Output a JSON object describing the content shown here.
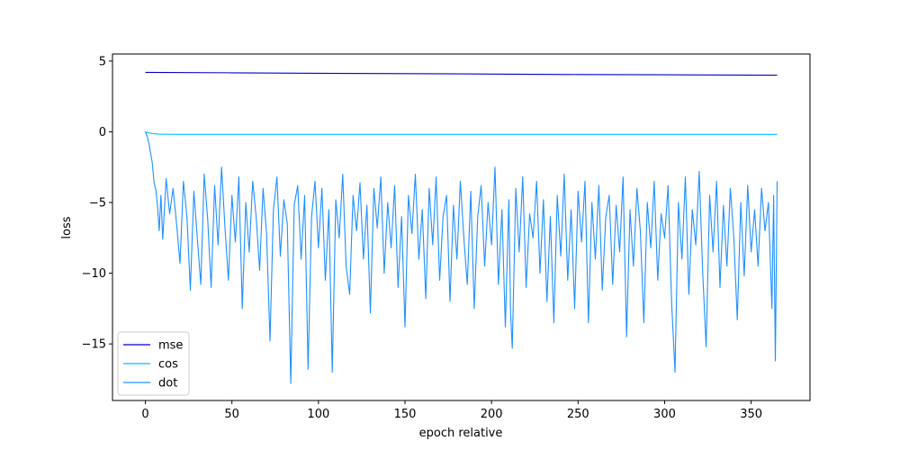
{
  "chart_data": {
    "type": "line",
    "title": "",
    "xlabel": "epoch relative",
    "ylabel": "loss",
    "xlim": [
      -19,
      384
    ],
    "ylim": [
      -19,
      5.5
    ],
    "xticks": [
      0,
      50,
      100,
      150,
      200,
      250,
      300,
      350
    ],
    "yticks": [
      5,
      0,
      -5,
      -10,
      -15
    ],
    "ytick_labels": [
      "5",
      "0",
      "−5",
      "−10",
      "−15"
    ],
    "grid": false,
    "legend_position": "lower-left",
    "series": [
      {
        "name": "mse",
        "color": "#0000cd",
        "points": [
          [
            0,
            4.2
          ],
          [
            50,
            4.17
          ],
          [
            100,
            4.14
          ],
          [
            150,
            4.11
          ],
          [
            200,
            4.08
          ],
          [
            250,
            4.05
          ],
          [
            300,
            4.03
          ],
          [
            365,
            4.0
          ]
        ]
      },
      {
        "name": "cos",
        "color": "#00bfff",
        "points": [
          [
            0,
            0.0
          ],
          [
            2,
            -0.08
          ],
          [
            4,
            -0.12
          ],
          [
            8,
            -0.17
          ],
          [
            20,
            -0.18
          ],
          [
            100,
            -0.18
          ],
          [
            200,
            -0.18
          ],
          [
            300,
            -0.18
          ],
          [
            365,
            -0.18
          ]
        ]
      },
      {
        "name": "dot",
        "color": "#1e90ff",
        "points": [
          [
            0,
            0.0
          ],
          [
            1,
            -0.3
          ],
          [
            2,
            -0.8
          ],
          [
            3,
            -1.5
          ],
          [
            4,
            -2.2
          ],
          [
            5,
            -3.6
          ],
          [
            6,
            -4.1
          ],
          [
            7,
            -5.2
          ],
          [
            8,
            -7.0
          ],
          [
            9,
            -4.5
          ],
          [
            10,
            -7.6
          ],
          [
            12,
            -3.3
          ],
          [
            14,
            -5.8
          ],
          [
            16,
            -4.0
          ],
          [
            18,
            -6.5
          ],
          [
            20,
            -9.3
          ],
          [
            22,
            -3.5
          ],
          [
            24,
            -6.0
          ],
          [
            26,
            -11.2
          ],
          [
            28,
            -4.2
          ],
          [
            30,
            -7.5
          ],
          [
            32,
            -10.8
          ],
          [
            34,
            -3.0
          ],
          [
            36,
            -6.2
          ],
          [
            38,
            -11.0
          ],
          [
            40,
            -3.8
          ],
          [
            42,
            -8.0
          ],
          [
            44,
            -2.5
          ],
          [
            46,
            -6.8
          ],
          [
            48,
            -10.5
          ],
          [
            50,
            -4.5
          ],
          [
            52,
            -7.8
          ],
          [
            54,
            -3.2
          ],
          [
            56,
            -12.5
          ],
          [
            58,
            -5.0
          ],
          [
            60,
            -8.5
          ],
          [
            62,
            -3.5
          ],
          [
            64,
            -6.0
          ],
          [
            66,
            -9.8
          ],
          [
            68,
            -4.0
          ],
          [
            70,
            -7.2
          ],
          [
            72,
            -14.8
          ],
          [
            74,
            -5.5
          ],
          [
            76,
            -3.2
          ],
          [
            78,
            -8.8
          ],
          [
            80,
            -4.8
          ],
          [
            82,
            -6.5
          ],
          [
            84,
            -17.8
          ],
          [
            86,
            -5.2
          ],
          [
            88,
            -3.8
          ],
          [
            90,
            -9.0
          ],
          [
            92,
            -4.5
          ],
          [
            94,
            -16.8
          ],
          [
            96,
            -6.0
          ],
          [
            98,
            -3.5
          ],
          [
            100,
            -8.2
          ],
          [
            102,
            -4.0
          ],
          [
            104,
            -10.5
          ],
          [
            106,
            -5.5
          ],
          [
            108,
            -17.0
          ],
          [
            110,
            -4.8
          ],
          [
            112,
            -7.5
          ],
          [
            114,
            -3.0
          ],
          [
            116,
            -9.5
          ],
          [
            118,
            -11.5
          ],
          [
            120,
            -4.5
          ],
          [
            122,
            -7.0
          ],
          [
            124,
            -3.6
          ],
          [
            126,
            -9.0
          ],
          [
            128,
            -5.2
          ],
          [
            130,
            -12.8
          ],
          [
            132,
            -4.0
          ],
          [
            134,
            -6.8
          ],
          [
            136,
            -3.2
          ],
          [
            138,
            -10.0
          ],
          [
            140,
            -5.0
          ],
          [
            142,
            -8.2
          ],
          [
            144,
            -3.8
          ],
          [
            146,
            -11.0
          ],
          [
            148,
            -6.0
          ],
          [
            150,
            -13.8
          ],
          [
            152,
            -4.5
          ],
          [
            154,
            -7.2
          ],
          [
            156,
            -3.0
          ],
          [
            158,
            -9.0
          ],
          [
            160,
            -5.5
          ],
          [
            162,
            -11.8
          ],
          [
            164,
            -4.0
          ],
          [
            166,
            -8.0
          ],
          [
            168,
            -3.2
          ],
          [
            170,
            -10.5
          ],
          [
            172,
            -6.0
          ],
          [
            174,
            -4.5
          ],
          [
            176,
            -12.0
          ],
          [
            178,
            -5.2
          ],
          [
            180,
            -9.0
          ],
          [
            182,
            -3.5
          ],
          [
            184,
            -7.5
          ],
          [
            186,
            -10.8
          ],
          [
            188,
            -4.2
          ],
          [
            190,
            -12.5
          ],
          [
            192,
            -6.0
          ],
          [
            194,
            -3.8
          ],
          [
            196,
            -9.5
          ],
          [
            198,
            -5.0
          ],
          [
            200,
            -8.0
          ],
          [
            202,
            -2.5
          ],
          [
            204,
            -10.8
          ],
          [
            206,
            -5.5
          ],
          [
            208,
            -13.8
          ],
          [
            210,
            -4.8
          ],
          [
            211,
            -12.8
          ],
          [
            212,
            -15.3
          ],
          [
            214,
            -4.0
          ],
          [
            216,
            -8.5
          ],
          [
            218,
            -3.2
          ],
          [
            220,
            -11.0
          ],
          [
            222,
            -5.8
          ],
          [
            224,
            -7.5
          ],
          [
            226,
            -3.5
          ],
          [
            228,
            -10.0
          ],
          [
            230,
            -4.8
          ],
          [
            232,
            -12.0
          ],
          [
            234,
            -6.0
          ],
          [
            236,
            -13.5
          ],
          [
            238,
            -4.5
          ],
          [
            240,
            -8.8
          ],
          [
            242,
            -3.0
          ],
          [
            244,
            -10.5
          ],
          [
            246,
            -5.5
          ],
          [
            248,
            -12.5
          ],
          [
            250,
            -4.2
          ],
          [
            252,
            -7.8
          ],
          [
            254,
            -3.5
          ],
          [
            256,
            -13.5
          ],
          [
            258,
            -5.0
          ],
          [
            260,
            -9.0
          ],
          [
            262,
            -3.8
          ],
          [
            264,
            -11.2
          ],
          [
            266,
            -6.0
          ],
          [
            268,
            -4.5
          ],
          [
            270,
            -10.8
          ],
          [
            272,
            -5.2
          ],
          [
            274,
            -8.5
          ],
          [
            276,
            -3.2
          ],
          [
            278,
            -14.5
          ],
          [
            280,
            -5.5
          ],
          [
            282,
            -9.5
          ],
          [
            284,
            -4.0
          ],
          [
            286,
            -7.0
          ],
          [
            288,
            -13.5
          ],
          [
            290,
            -5.0
          ],
          [
            292,
            -8.2
          ],
          [
            294,
            -3.5
          ],
          [
            296,
            -10.5
          ],
          [
            298,
            -5.8
          ],
          [
            300,
            -7.5
          ],
          [
            302,
            -3.8
          ],
          [
            304,
            -12.0
          ],
          [
            306,
            -17.0
          ],
          [
            308,
            -5.0
          ],
          [
            310,
            -9.0
          ],
          [
            312,
            -3.2
          ],
          [
            314,
            -11.5
          ],
          [
            316,
            -5.5
          ],
          [
            318,
            -8.0
          ],
          [
            320,
            -2.8
          ],
          [
            322,
            -10.0
          ],
          [
            324,
            -15.2
          ],
          [
            326,
            -4.5
          ],
          [
            328,
            -8.5
          ],
          [
            330,
            -3.5
          ],
          [
            332,
            -11.0
          ],
          [
            334,
            -5.2
          ],
          [
            336,
            -9.5
          ],
          [
            338,
            -4.0
          ],
          [
            340,
            -7.5
          ],
          [
            342,
            -13.3
          ],
          [
            344,
            -5.0
          ],
          [
            346,
            -10.2
          ],
          [
            348,
            -3.8
          ],
          [
            350,
            -8.5
          ],
          [
            352,
            -5.5
          ],
          [
            354,
            -9.5
          ],
          [
            356,
            -4.0
          ],
          [
            358,
            -7.0
          ],
          [
            360,
            -5.0
          ],
          [
            362,
            -12.5
          ],
          [
            363,
            -4.5
          ],
          [
            364,
            -16.2
          ],
          [
            365,
            -3.5
          ]
        ]
      }
    ]
  }
}
